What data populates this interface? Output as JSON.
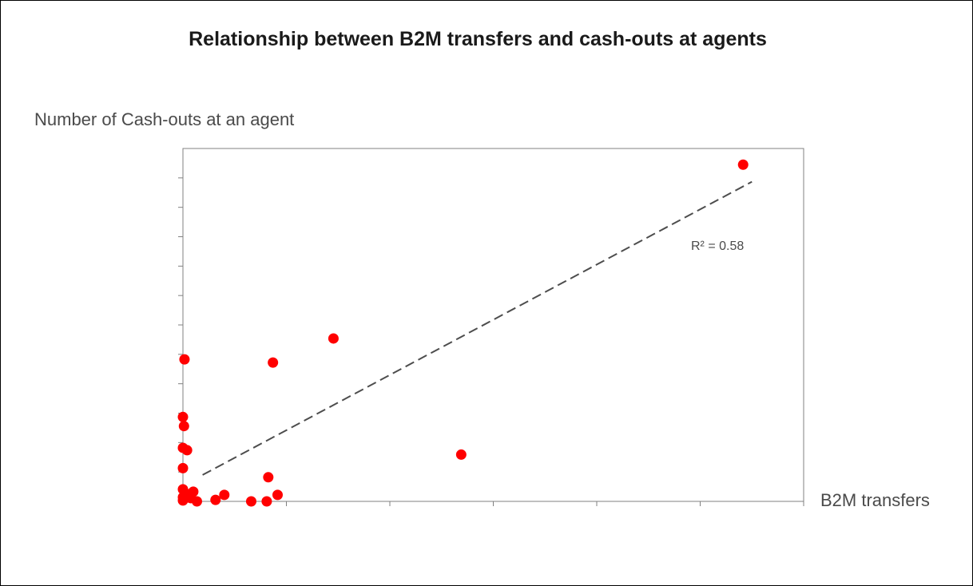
{
  "chart_data": {
    "type": "scatter",
    "title": "Relationship between B2M transfers and cash-outs at agents",
    "xlabel": "B2M transfers",
    "ylabel": "Number of Cash-outs at an agent",
    "xlim": [
      0,
      12
    ],
    "ylim": [
      0,
      12
    ],
    "grid": false,
    "legend": "none",
    "tick_labels": "none",
    "x_ticks": [
      2,
      4,
      6,
      8,
      10,
      12
    ],
    "y_ticks": [
      1,
      2,
      3,
      4,
      5,
      6,
      7,
      8,
      9,
      10,
      11
    ],
    "series": [
      {
        "marker_color": "#ff0000",
        "points": [
          {
            "x": 10.83,
            "y": 11.45
          },
          {
            "x": 2.91,
            "y": 5.54
          },
          {
            "x": 1.74,
            "y": 4.72
          },
          {
            "x": 0.03,
            "y": 4.83
          },
          {
            "x": 5.38,
            "y": 1.59
          },
          {
            "x": 0.0,
            "y": 2.87
          },
          {
            "x": 0.02,
            "y": 2.56
          },
          {
            "x": 0.0,
            "y": 1.82
          },
          {
            "x": 0.08,
            "y": 1.74
          },
          {
            "x": 0.0,
            "y": 1.13
          },
          {
            "x": 1.65,
            "y": 0.82
          },
          {
            "x": 0.0,
            "y": 0.41
          },
          {
            "x": 0.2,
            "y": 0.33
          },
          {
            "x": 0.05,
            "y": 0.27
          },
          {
            "x": 0.1,
            "y": 0.22
          },
          {
            "x": 0.0,
            "y": 0.14
          },
          {
            "x": 0.15,
            "y": 0.11
          },
          {
            "x": 0.27,
            "y": 0.0
          },
          {
            "x": 0.0,
            "y": 0.03
          },
          {
            "x": 0.63,
            "y": 0.05
          },
          {
            "x": 0.8,
            "y": 0.22
          },
          {
            "x": 1.32,
            "y": 0.0
          },
          {
            "x": 1.62,
            "y": 0.0
          },
          {
            "x": 1.83,
            "y": 0.22
          }
        ]
      }
    ],
    "trendline": {
      "style": "dashed",
      "color": "#4d4d4d",
      "x": [
        0.38,
        11.0
      ],
      "y": [
        0.9,
        10.87
      ],
      "annotation": "R² = 0.58"
    }
  }
}
